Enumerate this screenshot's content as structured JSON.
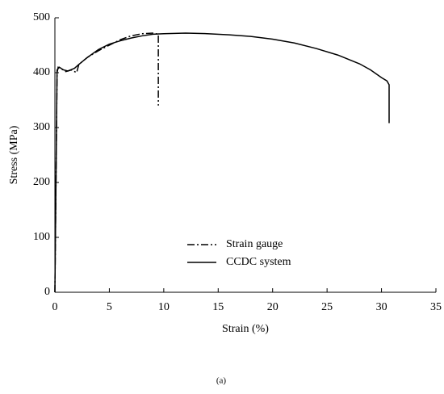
{
  "chart_data": {
    "type": "line",
    "x_label": "Strain (%)",
    "y_label": "Stress (MPa)",
    "caption": "(a)",
    "xlim": [
      0,
      35
    ],
    "xticks": [
      0,
      5,
      10,
      15,
      20,
      25,
      30,
      35
    ],
    "ylim": [
      0,
      500
    ],
    "yticks": [
      0,
      100,
      200,
      300,
      400,
      500
    ],
    "grid": false,
    "legend_position": "center",
    "series": [
      {
        "name": "Strain gauge",
        "color": "#000000",
        "line_style": "dashdot",
        "x": [
          0,
          0.2,
          0.3,
          0.5,
          1,
          1.5,
          2,
          2.2,
          3,
          4,
          5,
          6,
          7,
          8,
          9,
          9.5,
          9.5
        ],
        "values": [
          0,
          400,
          410,
          408,
          402,
          405,
          400,
          415,
          428,
          440,
          450,
          460,
          467,
          471,
          472,
          470,
          340
        ]
      },
      {
        "name": "CCDC system",
        "color": "#000000",
        "line_style": "solid",
        "x": [
          0,
          0.1,
          0.2,
          0.4,
          0.8,
          1.2,
          1.8,
          2.2,
          3,
          4,
          5,
          6,
          7,
          8,
          9,
          10,
          12,
          14,
          16,
          18,
          20,
          22,
          24,
          26,
          28,
          29,
          30,
          30.5,
          30.7,
          30.7
        ],
        "values": [
          0,
          200,
          405,
          410,
          405,
          403,
          408,
          415,
          428,
          442,
          452,
          458,
          463,
          467,
          470,
          471,
          472,
          471,
          469,
          466,
          461,
          454,
          444,
          432,
          416,
          405,
          391,
          385,
          378,
          308
        ]
      }
    ]
  }
}
